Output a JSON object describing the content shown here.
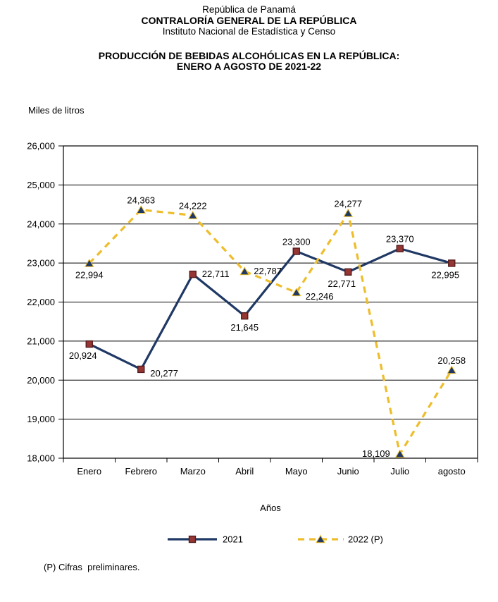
{
  "header": {
    "country": "República de Panamá",
    "institution": "CONTRALORÍA GENERAL DE LA REPÚBLICA",
    "department": "Instituto Nacional de Estadística y Censo",
    "title_line1": "PRODUCCIÓN DE BEBIDAS ALCOHÓLICAS EN LA REPÚBLICA:",
    "title_line2": "ENERO A AGOSTO DE 2021-22"
  },
  "chart_data": {
    "type": "line",
    "title": "PRODUCCIÓN DE BEBIDAS ALCOHÓLICAS EN LA REPÚBLICA: ENERO A AGOSTO DE 2021-22",
    "y_unit_label": "Miles de litros",
    "xlabel": "Años",
    "ylabel": "",
    "categories": [
      "Enero",
      "Febrero",
      "Marzo",
      "Abril",
      "Mayo",
      "Junio",
      "Julio",
      "agosto"
    ],
    "series": [
      {
        "name": "2021",
        "values": [
          20924,
          20277,
          22711,
          21645,
          23300,
          22771,
          23370,
          22995
        ],
        "color": "#1F3864",
        "dashed": false,
        "marker": "square",
        "marker_fill": "#963634",
        "marker_stroke": "#541B1B",
        "label_pos": [
          "below-left",
          "right-below",
          "right",
          "below",
          "above",
          "below-left",
          "above",
          "below-left"
        ]
      },
      {
        "name": "2022 (P)",
        "values": [
          22994,
          24363,
          24222,
          22787,
          22246,
          24277,
          18109,
          20258
        ],
        "color": "#EEBD2B",
        "dashed": true,
        "marker": "triangle",
        "marker_fill": "#1F3864",
        "marker_stroke": "#EEBD2B",
        "label_pos": [
          "below",
          "above",
          "above",
          "right",
          "right-below",
          "above",
          "left",
          "above"
        ]
      }
    ],
    "ylim": [
      18000,
      26000
    ],
    "ytick_step": 1000,
    "grid": "horizontal",
    "grid_color": "#000000",
    "legend_position": "bottom"
  },
  "footer": {
    "note": "(P) Cifras  preliminares."
  }
}
